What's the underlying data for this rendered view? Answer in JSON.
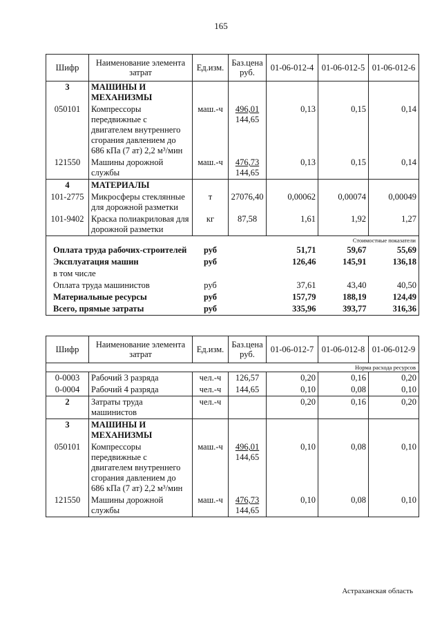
{
  "page_number": "165",
  "table1": {
    "header": [
      "Шифр",
      "Наименование элемента затрат",
      "Ед.изм.",
      "Баз.цена руб.",
      "01-06-012-4",
      "01-06-012-5",
      "01-06-012-6"
    ],
    "groups": [
      [
        {
          "code": "3",
          "name": "МАШИНЫ И МЕХАНИЗМЫ"
        },
        {
          "code": "050101",
          "name": "Компрессоры передвижные с двигателем внутреннего сгорания давлением до 686 кПа (7 ат) 2,2 м³/мин",
          "unit": "маш.-ч",
          "price": [
            "496,01",
            "144,65"
          ],
          "values": [
            "0,13",
            "0,15",
            "0,14"
          ]
        },
        {
          "code": "121550",
          "name": "Машины дорожной службы",
          "unit": "маш.-ч",
          "price": [
            "476,73",
            "144,65"
          ],
          "values": [
            "0,13",
            "0,15",
            "0,14"
          ]
        }
      ],
      [
        {
          "code": "4",
          "name": "МАТЕРИАЛЫ"
        },
        {
          "code": "101-2775",
          "name": "Микросферы стеклянные для дорожной разметки",
          "unit": "т",
          "price": "27076,40",
          "values": [
            "0,00062",
            "0,00074",
            "0,00049"
          ]
        },
        {
          "code": "101-9402",
          "name": "Краска полиакриловая для дорожной разметки",
          "unit": "кг",
          "price": "87,58",
          "values": [
            "1,61",
            "1,92",
            "1,27"
          ]
        }
      ]
    ],
    "summary": {
      "label": "Стоимостные показатели",
      "rows": [
        {
          "name": "Оплата труда рабочих-строителей",
          "unit": "руб",
          "values": [
            "51,71",
            "59,67",
            "55,69"
          ]
        },
        {
          "name": "Эксплуатация машин",
          "unit": "руб",
          "values": [
            "126,46",
            "145,91",
            "136,18"
          ]
        },
        {
          "name": "в том числе"
        },
        {
          "name": "Оплата труда машинистов",
          "unit": "руб",
          "values": [
            "37,61",
            "43,40",
            "40,50"
          ]
        },
        {
          "name": "Материальные ресурсы",
          "unit": "руб",
          "values": [
            "157,79",
            "188,19",
            "124,49"
          ]
        },
        {
          "name": "Всего, прямые затраты",
          "unit": "руб",
          "values": [
            "335,96",
            "393,77",
            "316,36"
          ]
        }
      ]
    }
  },
  "table2": {
    "header": [
      "Шифр",
      "Наименование элемента затрат",
      "Ед.изм.",
      "Баз.цена руб.",
      "01-06-012-7",
      "01-06-012-8",
      "01-06-012-9"
    ],
    "label": "Норма расхода ресурсов",
    "groups": [
      [
        {
          "code": "0-0003",
          "name": "Рабочий 3 разряда",
          "unit": "чел.-ч",
          "price": "126,57",
          "values": [
            "0,20",
            "0,16",
            "0,20"
          ]
        },
        {
          "code": "0-0004",
          "name": "Рабочий 4 разряда",
          "unit": "чел.-ч",
          "price": "144,65",
          "values": [
            "0,10",
            "0,08",
            "0,10"
          ]
        }
      ],
      [
        {
          "code": "2",
          "name": "Затраты труда машинистов",
          "unit": "чел.-ч",
          "values": [
            "0,20",
            "0,16",
            "0,20"
          ]
        }
      ],
      [
        {
          "code": "3",
          "name": "МАШИНЫ И МЕХАНИЗМЫ"
        },
        {
          "code": "050101",
          "name": "Компрессоры передвижные с двигателем внутреннего сгорания давлением до 686 кПа (7 ат) 2,2 м³/мин",
          "unit": "маш.-ч",
          "price": [
            "496,01",
            "144,65"
          ],
          "values": [
            "0,10",
            "0,08",
            "0,10"
          ]
        },
        {
          "code": "121550",
          "name": "Машины дорожной службы",
          "unit": "маш.-ч",
          "price": [
            "476,73",
            "144,65"
          ],
          "values": [
            "0,10",
            "0,08",
            "0,10"
          ]
        }
      ]
    ]
  },
  "footer": "Астраханская область"
}
